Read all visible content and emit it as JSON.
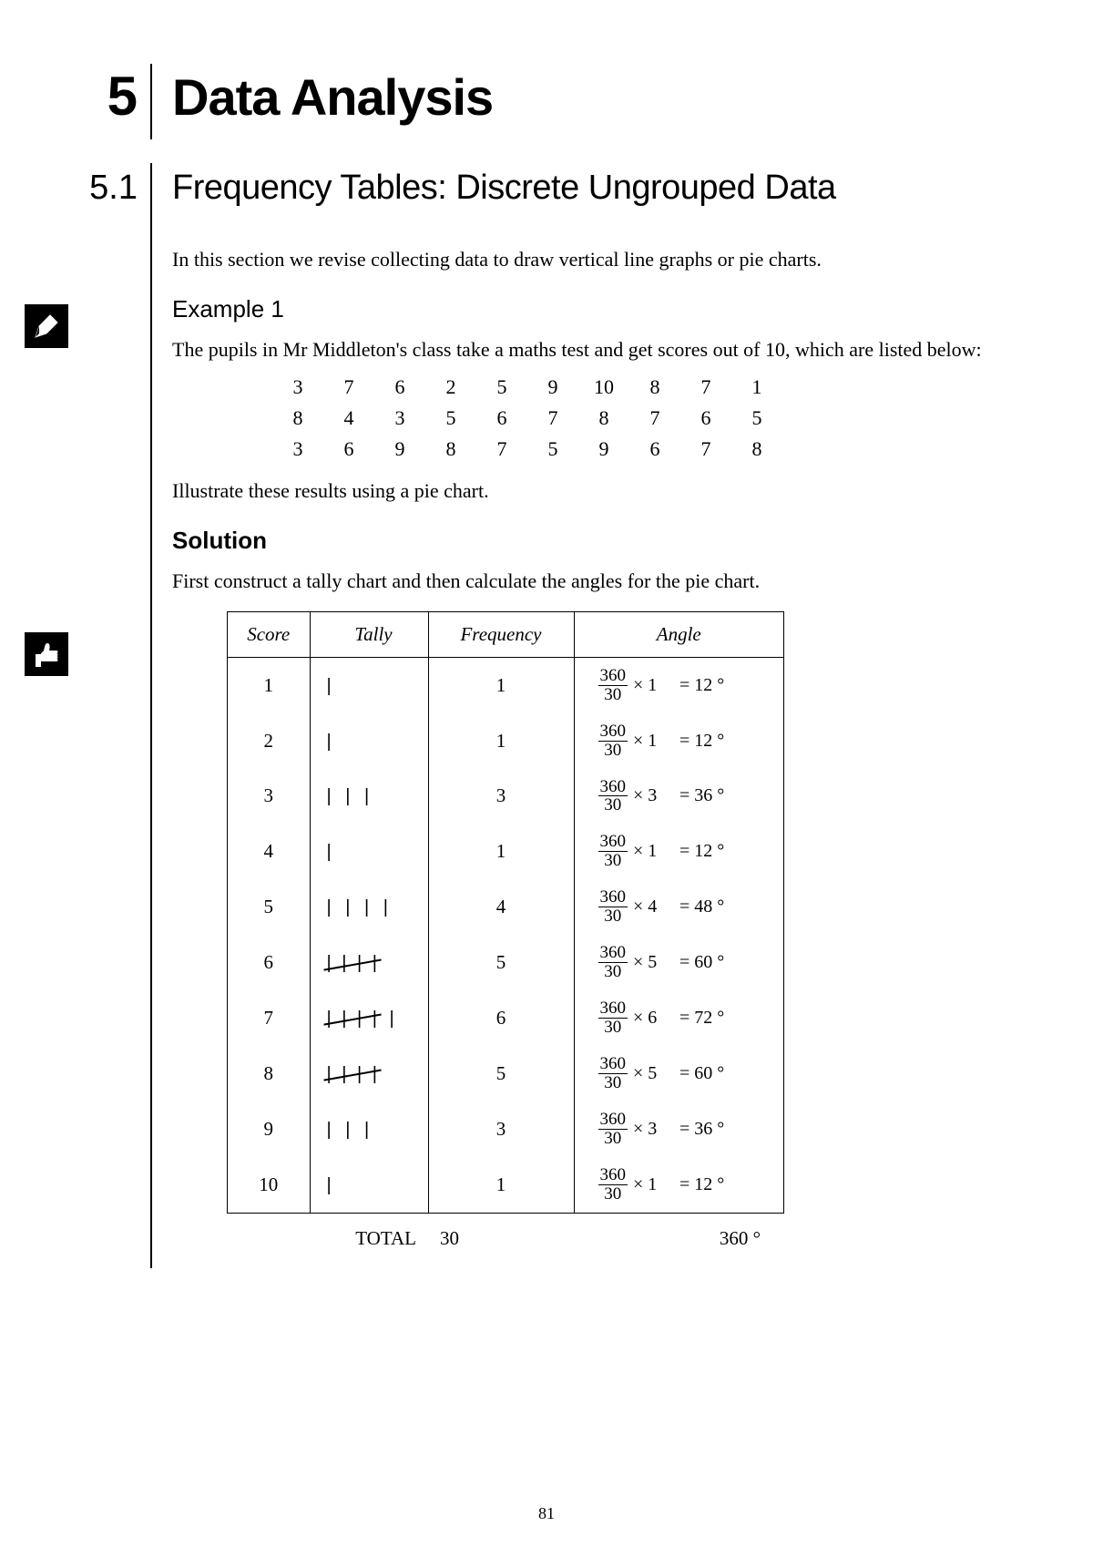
{
  "chapter": {
    "number": "5",
    "title": "Data Analysis"
  },
  "section": {
    "number": "5.1",
    "title": "Frequency Tables: Discrete Ungrouped Data"
  },
  "intro": "In this section we revise collecting data to draw vertical line graphs or pie charts.",
  "example": {
    "heading": "Example 1",
    "text": "The pupils in Mr Middleton's class take a maths test and get scores out of 10, which are listed below:",
    "scores": [
      [
        "3",
        "7",
        "6",
        "2",
        "5",
        "9",
        "10",
        "8",
        "7",
        "1"
      ],
      [
        "8",
        "4",
        "3",
        "5",
        "6",
        "7",
        "8",
        "7",
        "6",
        "5"
      ],
      [
        "3",
        "6",
        "9",
        "8",
        "7",
        "5",
        "9",
        "6",
        "7",
        "8"
      ]
    ],
    "instruction": "Illustrate these results using a pie chart."
  },
  "solution": {
    "heading": "Solution",
    "text": "First construct a tally chart and then calculate the angles for the pie chart.",
    "table": {
      "headers": [
        "Score",
        "Tally",
        "Frequency",
        "Angle"
      ],
      "frac_num": "360",
      "frac_den": "30",
      "rows": [
        {
          "score": "1",
          "tally": 1,
          "freq": "1",
          "mult": "× 1",
          "res": "=  12 °"
        },
        {
          "score": "2",
          "tally": 1,
          "freq": "1",
          "mult": "× 1",
          "res": "=  12 °"
        },
        {
          "score": "3",
          "tally": 3,
          "freq": "3",
          "mult": "× 3",
          "res": "=  36 °"
        },
        {
          "score": "4",
          "tally": 1,
          "freq": "1",
          "mult": "× 1",
          "res": "=  12 °"
        },
        {
          "score": "5",
          "tally": 4,
          "freq": "4",
          "mult": "× 4",
          "res": "=  48 °"
        },
        {
          "score": "6",
          "tally": 5,
          "freq": "5",
          "mult": "× 5",
          "res": "=  60 °"
        },
        {
          "score": "7",
          "tally": 6,
          "freq": "6",
          "mult": "× 6",
          "res": "=  72 °"
        },
        {
          "score": "8",
          "tally": 5,
          "freq": "5",
          "mult": "× 5",
          "res": "=  60 °"
        },
        {
          "score": "9",
          "tally": 3,
          "freq": "3",
          "mult": "× 3",
          "res": "=  36 °"
        },
        {
          "score": "10",
          "tally": 1,
          "freq": "1",
          "mult": "× 1",
          "res": "=  12 °"
        }
      ],
      "total_label": "TOTAL",
      "total_freq": "30",
      "total_angle": "360 °"
    }
  },
  "page_number": "81"
}
